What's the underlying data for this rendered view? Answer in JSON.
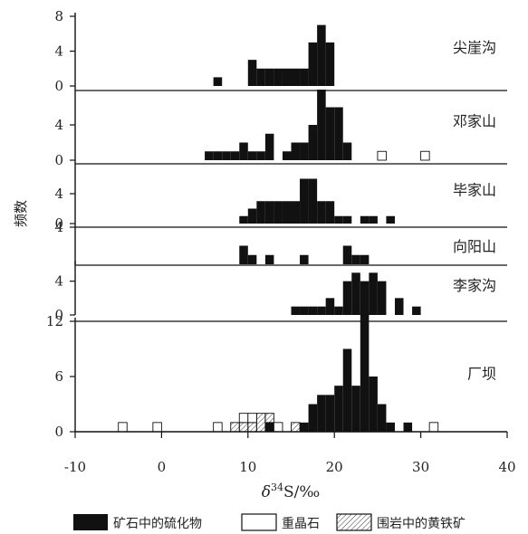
{
  "chart_data": {
    "type": "bar",
    "subtype": "stacked-histograms",
    "ylabel": "频数",
    "xlabel_delta": "δ",
    "xlabel_sup": "34",
    "xlabel_rest": "S/‰",
    "xlim": [
      -10,
      40
    ],
    "xticks": [
      -10,
      0,
      10,
      20,
      30,
      40
    ],
    "bin_width": 1,
    "legend": {
      "placement": "bottom",
      "items": [
        {
          "key": "ore",
          "label": "矿石中的硫化物"
        },
        {
          "key": "barite",
          "label": "重晶石"
        },
        {
          "key": "wallrock",
          "label": "围岩中的黄铁矿"
        }
      ]
    },
    "panels": [
      {
        "name": "尖崖沟",
        "ylim": [
          0,
          8
        ],
        "yticks": [
          0,
          4,
          8
        ],
        "series": {
          "ore": [
            [
              6,
              1
            ],
            [
              10,
              3
            ],
            [
              11,
              2
            ],
            [
              12,
              2
            ],
            [
              13,
              2
            ],
            [
              14,
              2
            ],
            [
              15,
              2
            ],
            [
              16,
              2
            ],
            [
              17,
              5
            ],
            [
              18,
              7
            ],
            [
              19,
              5
            ]
          ],
          "barite": [],
          "wallrock": []
        }
      },
      {
        "name": "邓家山",
        "ylim": [
          0,
          8
        ],
        "yticks": [
          0,
          4
        ],
        "series": {
          "ore": [
            [
              5,
              1
            ],
            [
              6,
              1
            ],
            [
              7,
              1
            ],
            [
              8,
              1
            ],
            [
              9,
              2
            ],
            [
              10,
              1
            ],
            [
              11,
              1
            ],
            [
              12,
              3
            ],
            [
              13,
              0
            ],
            [
              14,
              1
            ],
            [
              15,
              2
            ],
            [
              16,
              2
            ],
            [
              17,
              4
            ],
            [
              18,
              8
            ],
            [
              19,
              6
            ],
            [
              20,
              6
            ],
            [
              21,
              2
            ]
          ],
          "barite": [
            [
              25,
              1
            ],
            [
              30,
              1
            ]
          ],
          "wallrock": []
        }
      },
      {
        "name": "毕家山",
        "ylim": [
          0,
          8
        ],
        "yticks": [
          0,
          4
        ],
        "series": {
          "ore": [
            [
              9,
              1
            ],
            [
              10,
              2
            ],
            [
              11,
              3
            ],
            [
              12,
              3
            ],
            [
              13,
              3
            ],
            [
              14,
              3
            ],
            [
              15,
              3
            ],
            [
              16,
              6
            ],
            [
              17,
              6
            ],
            [
              18,
              3
            ],
            [
              19,
              3
            ],
            [
              20,
              1
            ],
            [
              21,
              1
            ],
            [
              23,
              1
            ],
            [
              24,
              1
            ],
            [
              26,
              1
            ]
          ],
          "barite": [],
          "wallrock": []
        }
      },
      {
        "name": "向阳山",
        "ylim": [
          0,
          4
        ],
        "yticks": [
          4
        ],
        "series": {
          "ore": [
            [
              9,
              2
            ],
            [
              10,
              1
            ],
            [
              12,
              1
            ],
            [
              16,
              1
            ],
            [
              21,
              2
            ],
            [
              22,
              1
            ],
            [
              23,
              1
            ]
          ],
          "barite": [],
          "wallrock": []
        }
      },
      {
        "name": "李家沟",
        "ylim": [
          0,
          6
        ],
        "yticks": [
          0,
          4
        ],
        "series": {
          "ore": [
            [
              15,
              1
            ],
            [
              16,
              1
            ],
            [
              17,
              1
            ],
            [
              18,
              1
            ],
            [
              19,
              2
            ],
            [
              20,
              1
            ],
            [
              21,
              4
            ],
            [
              22,
              5
            ],
            [
              23,
              4
            ],
            [
              24,
              5
            ],
            [
              25,
              4
            ],
            [
              27,
              2
            ],
            [
              29,
              1
            ]
          ],
          "barite": [],
          "wallrock": []
        }
      },
      {
        "name": "厂坝",
        "ylim": [
          0,
          12
        ],
        "yticks": [
          0,
          6,
          12
        ],
        "series": {
          "ore": [
            [
              12,
              1
            ],
            [
              16,
              1
            ],
            [
              17,
              3
            ],
            [
              18,
              4
            ],
            [
              19,
              4
            ],
            [
              20,
              5
            ],
            [
              21,
              9
            ],
            [
              22,
              5
            ],
            [
              23,
              13
            ],
            [
              24,
              6
            ],
            [
              25,
              3
            ],
            [
              26,
              1
            ],
            [
              28,
              1
            ]
          ],
          "barite": [
            [
              -5,
              1
            ],
            [
              -1,
              1
            ],
            [
              6,
              1
            ],
            [
              9,
              1
            ],
            [
              10,
              1
            ],
            [
              13,
              1
            ],
            [
              31,
              1
            ]
          ],
          "wallrock": [
            [
              8,
              1
            ],
            [
              9,
              1
            ],
            [
              10,
              1
            ],
            [
              11,
              2
            ],
            [
              12,
              1
            ],
            [
              15,
              1
            ]
          ]
        }
      }
    ]
  }
}
